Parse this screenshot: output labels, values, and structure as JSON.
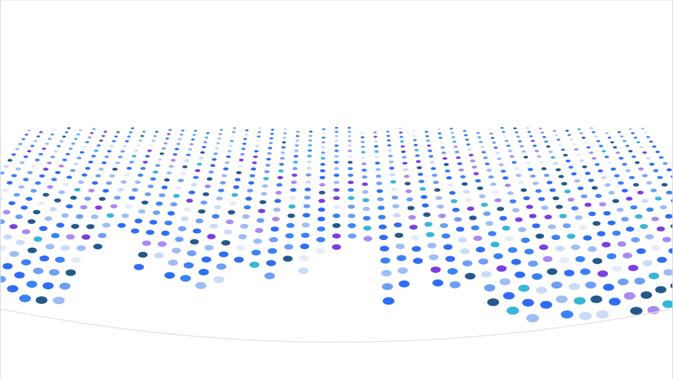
{
  "slide": {
    "background": "#ffffff"
  },
  "dot_field": {
    "icon": "halftone-dot-wave",
    "palette": [
      "#2f6df6",
      "#3b82f6",
      "#6f9ef5",
      "#9fbdf4",
      "#c9dbf7",
      "#7b3fe0",
      "#a98aee",
      "#37b7d6",
      "#245a8a",
      "#e6ecf5"
    ],
    "weights": [
      16,
      13,
      14,
      11,
      8,
      6,
      6,
      6,
      9,
      6
    ],
    "curve_color": "#e4e4e4"
  }
}
